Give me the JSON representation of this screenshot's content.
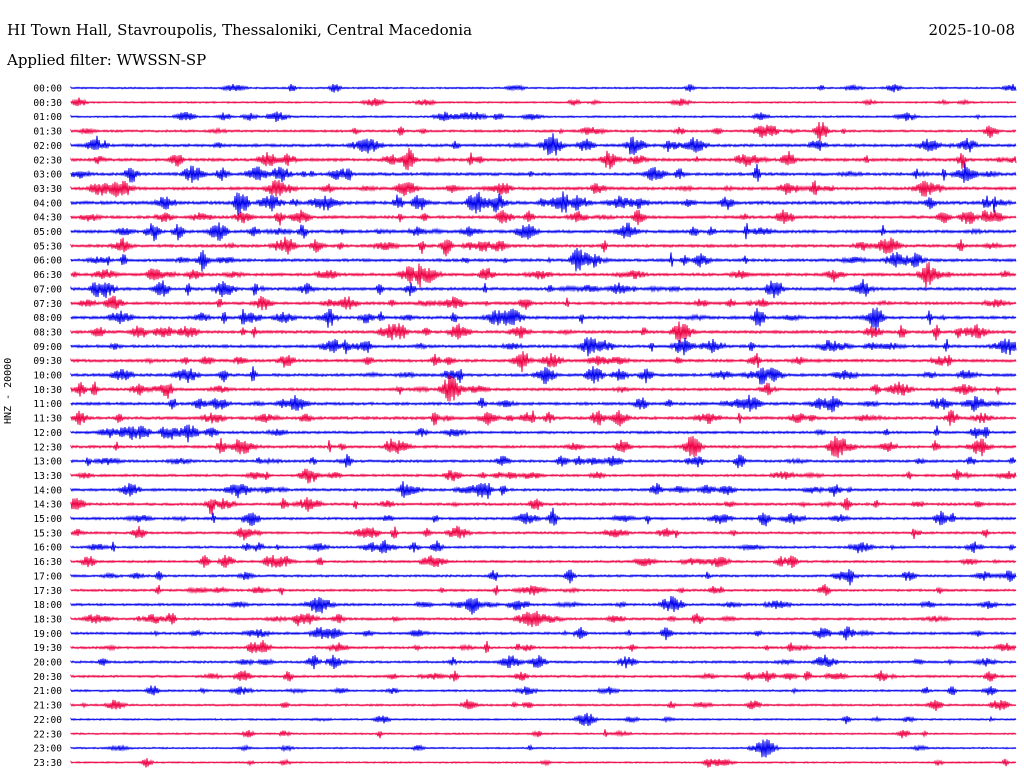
{
  "header": {
    "station": "HI Town Hall, Stavroupolis, Thessaloniki, Central Macedonia",
    "date": "2025-10-08",
    "filter": "Applied filter: WWSSN-SP"
  },
  "chart_data": {
    "type": "line",
    "title": "HI Town Hall, Stavroupolis, Thessaloniki, Central Macedonia",
    "ylabel": "HNZ - 20000",
    "xlabel": "",
    "row_labels": [
      "00:00",
      "00:30",
      "01:00",
      "01:30",
      "02:00",
      "02:30",
      "03:00",
      "03:30",
      "04:00",
      "04:30",
      "05:00",
      "05:30",
      "06:00",
      "06:30",
      "07:00",
      "07:30",
      "08:00",
      "08:30",
      "09:00",
      "09:30",
      "10:00",
      "10:30",
      "11:00",
      "11:30",
      "12:00",
      "12:30",
      "13:00",
      "13:30",
      "14:00",
      "14:30",
      "15:00",
      "15:30",
      "16:00",
      "16:30",
      "17:00",
      "17:30",
      "18:00",
      "18:30",
      "19:00",
      "19:30",
      "20:00",
      "20:30",
      "21:00",
      "21:30",
      "22:00",
      "22:30",
      "23:00",
      "23:30"
    ],
    "row_activity": [
      0.15,
      0.12,
      0.2,
      0.35,
      0.55,
      0.6,
      0.6,
      0.6,
      0.7,
      0.55,
      0.6,
      0.55,
      0.55,
      0.55,
      0.6,
      0.55,
      0.6,
      0.55,
      0.55,
      0.55,
      0.55,
      0.5,
      0.55,
      0.55,
      0.45,
      0.5,
      0.45,
      0.4,
      0.45,
      0.45,
      0.45,
      0.35,
      0.35,
      0.35,
      0.35,
      0.35,
      0.4,
      0.4,
      0.4,
      0.35,
      0.35,
      0.35,
      0.25,
      0.25,
      0.15,
      0.15,
      0.12,
      0.08
    ],
    "series_colors": [
      "#0000ee",
      "#ee0044"
    ]
  }
}
